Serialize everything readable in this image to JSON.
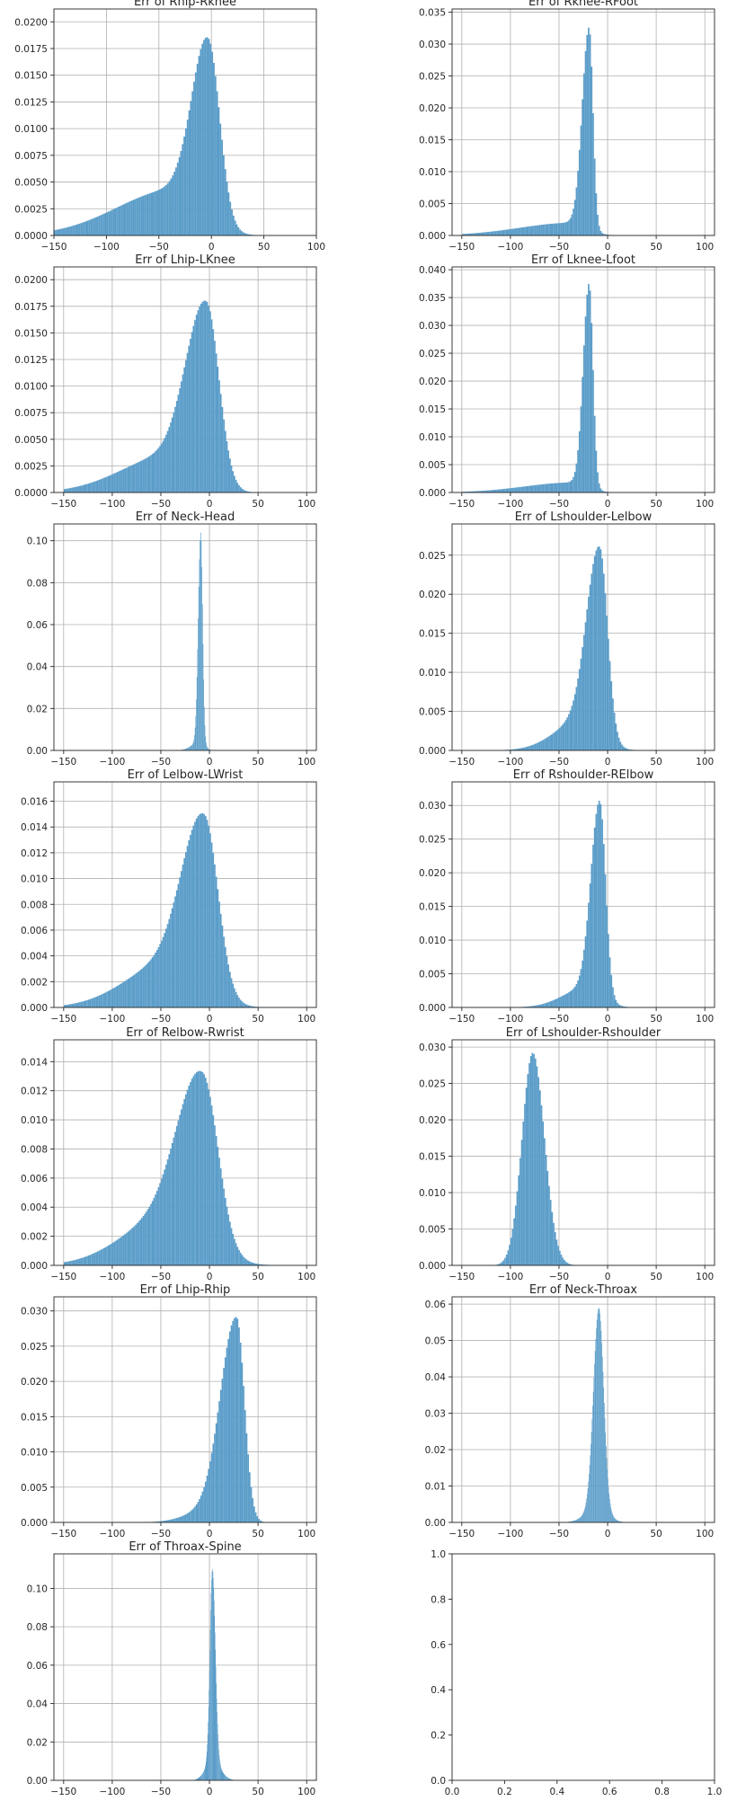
{
  "style": {
    "bar_color": "#5b9dc9",
    "grid_color": "#b0b0b0",
    "axis_color": "#262626"
  },
  "chart_data": [
    {
      "type": "histogram",
      "title": "Err of Rhip-Rknee",
      "grid": true,
      "xlim": [
        -150,
        100
      ],
      "xticks": [
        -150,
        -100,
        -50,
        0,
        50,
        100
      ],
      "ylim": [
        0,
        0.0212
      ],
      "yticks": [
        0.0,
        0.0025,
        0.005,
        0.0075,
        0.01,
        0.0125,
        0.015,
        0.0175,
        0.02
      ],
      "ytick_labels": [
        "0.0000",
        "0.0025",
        "0.0050",
        "0.0075",
        "0.0100",
        "0.0125",
        "0.0150",
        "0.0175",
        "0.0200"
      ],
      "x_range": [
        -150,
        100
      ],
      "components": [
        {
          "mu": -3,
          "sl": 15,
          "sr": 11,
          "w": 0.0166
        },
        {
          "mu": -35,
          "sl": 55,
          "sr": 25,
          "w": 0.0043
        }
      ]
    },
    {
      "type": "histogram",
      "title": "Err of Rknee-RFoot",
      "grid": true,
      "xlim": [
        -160,
        110
      ],
      "xticks": [
        -150,
        -100,
        -50,
        0,
        50,
        100
      ],
      "ylim": [
        0,
        0.0355
      ],
      "yticks": [
        0.0,
        0.005,
        0.01,
        0.015,
        0.02,
        0.025,
        0.03,
        0.035
      ],
      "ytick_labels": [
        "0.000",
        "0.005",
        "0.010",
        "0.015",
        "0.020",
        "0.025",
        "0.030",
        "0.035"
      ],
      "x_range": [
        -150,
        100
      ],
      "components": [
        {
          "mu": -19,
          "sl": 7,
          "sr": 4,
          "w": 0.0315
        },
        {
          "mu": -35,
          "sl": 55,
          "sr": 15,
          "w": 0.002
        }
      ]
    },
    {
      "type": "histogram",
      "title": "Err of Lhip-LKnee",
      "grid": true,
      "xlim": [
        -160,
        110
      ],
      "xticks": [
        -150,
        -100,
        -50,
        0,
        50,
        100
      ],
      "ylim": [
        0,
        0.0212
      ],
      "yticks": [
        0.0,
        0.0025,
        0.005,
        0.0075,
        0.01,
        0.0125,
        0.015,
        0.0175,
        0.02
      ],
      "ytick_labels": [
        "0.0000",
        "0.0025",
        "0.0050",
        "0.0075",
        "0.0100",
        "0.0125",
        "0.0150",
        "0.0175",
        "0.0200"
      ],
      "x_range": [
        -150,
        100
      ],
      "components": [
        {
          "mu": -3,
          "sl": 20,
          "sr": 13,
          "w": 0.0168
        },
        {
          "mu": -40,
          "sl": 50,
          "sr": 25,
          "w": 0.0035
        }
      ]
    },
    {
      "type": "histogram",
      "title": "Err of Lknee-Lfoot",
      "grid": true,
      "xlim": [
        -160,
        110
      ],
      "xticks": [
        -150,
        -100,
        -50,
        0,
        50,
        100
      ],
      "ylim": [
        0,
        0.0405
      ],
      "yticks": [
        0.0,
        0.005,
        0.01,
        0.015,
        0.02,
        0.025,
        0.03,
        0.035,
        0.04
      ],
      "ytick_labels": [
        "0.000",
        "0.005",
        "0.010",
        "0.015",
        "0.020",
        "0.025",
        "0.030",
        "0.035",
        "0.040"
      ],
      "x_range": [
        -150,
        100
      ],
      "components": [
        {
          "mu": -19,
          "sl": 6,
          "sr": 4,
          "w": 0.0365
        },
        {
          "mu": -35,
          "sl": 50,
          "sr": 15,
          "w": 0.0018
        }
      ]
    },
    {
      "type": "histogram",
      "title": "Err of Neck-Head",
      "grid": true,
      "xlim": [
        -160,
        110
      ],
      "xticks": [
        -150,
        -100,
        -50,
        0,
        50,
        100
      ],
      "ylim": [
        0,
        0.108
      ],
      "yticks": [
        0.0,
        0.02,
        0.04,
        0.06,
        0.08,
        0.1
      ],
      "ytick_labels": [
        "0.00",
        "0.02",
        "0.04",
        "0.06",
        "0.08",
        "0.10"
      ],
      "x_range": [
        -50,
        50
      ],
      "components": [
        {
          "mu": -9,
          "sl": 2.5,
          "sr": 2,
          "w": 0.1
        },
        {
          "mu": -10,
          "sl": 8,
          "sr": 5,
          "w": 0.004
        }
      ]
    },
    {
      "type": "histogram",
      "title": "Err of Lshoulder-Lelbow",
      "grid": true,
      "xlim": [
        -160,
        110
      ],
      "xticks": [
        -150,
        -100,
        -50,
        0,
        50,
        100
      ],
      "ylim": [
        0,
        0.029
      ],
      "yticks": [
        0.0,
        0.005,
        0.01,
        0.015,
        0.02,
        0.025
      ],
      "ytick_labels": [
        "0.000",
        "0.005",
        "0.010",
        "0.015",
        "0.020",
        "0.025"
      ],
      "x_range": [
        -150,
        100
      ],
      "components": [
        {
          "mu": -8,
          "sl": 13,
          "sr": 8,
          "w": 0.0235
        },
        {
          "mu": -25,
          "sl": 28,
          "sr": 18,
          "w": 0.004
        }
      ]
    },
    {
      "type": "histogram",
      "title": "Err of Lelbow-LWrist",
      "grid": true,
      "xlim": [
        -160,
        110
      ],
      "xticks": [
        -150,
        -100,
        -50,
        0,
        50,
        100
      ],
      "ylim": [
        0,
        0.0175
      ],
      "yticks": [
        0.0,
        0.002,
        0.004,
        0.006,
        0.008,
        0.01,
        0.012,
        0.014,
        0.016
      ],
      "ytick_labels": [
        "0.000",
        "0.002",
        "0.004",
        "0.006",
        "0.008",
        "0.010",
        "0.012",
        "0.014",
        "0.016"
      ],
      "x_range": [
        -150,
        100
      ],
      "components": [
        {
          "mu": -5,
          "sl": 22,
          "sr": 14,
          "w": 0.0132
        },
        {
          "mu": -40,
          "sl": 45,
          "sr": 30,
          "w": 0.0035
        }
      ]
    },
    {
      "type": "histogram",
      "title": "Err of Rshoulder-RElbow",
      "grid": true,
      "xlim": [
        -160,
        110
      ],
      "xticks": [
        -150,
        -100,
        -50,
        0,
        50,
        100
      ],
      "ylim": [
        0,
        0.0335
      ],
      "yticks": [
        0.0,
        0.005,
        0.01,
        0.015,
        0.02,
        0.025,
        0.03
      ],
      "ytick_labels": [
        "0.000",
        "0.005",
        "0.010",
        "0.015",
        "0.020",
        "0.025",
        "0.030"
      ],
      "x_range": [
        -150,
        100
      ],
      "components": [
        {
          "mu": -8,
          "sl": 9,
          "sr": 6,
          "w": 0.0285
        },
        {
          "mu": -20,
          "sl": 25,
          "sr": 15,
          "w": 0.003
        }
      ]
    },
    {
      "type": "histogram",
      "title": "Err of Relbow-Rwrist",
      "grid": true,
      "xlim": [
        -160,
        110
      ],
      "xticks": [
        -150,
        -100,
        -50,
        0,
        50,
        100
      ],
      "ylim": [
        0,
        0.0155
      ],
      "yticks": [
        0.0,
        0.002,
        0.004,
        0.006,
        0.008,
        0.01,
        0.012,
        0.014
      ],
      "ytick_labels": [
        "0.000",
        "0.002",
        "0.004",
        "0.006",
        "0.008",
        "0.010",
        "0.012",
        "0.014"
      ],
      "x_range": [
        -150,
        100
      ],
      "components": [
        {
          "mu": -7,
          "sl": 25,
          "sr": 16,
          "w": 0.0115
        },
        {
          "mu": -45,
          "sl": 45,
          "sr": 35,
          "w": 0.0032
        }
      ]
    },
    {
      "type": "histogram",
      "title": "Err of Lshoulder-Rshoulder",
      "grid": true,
      "xlim": [
        -160,
        110
      ],
      "xticks": [
        -150,
        -100,
        -50,
        0,
        50,
        100
      ],
      "ylim": [
        0,
        0.031
      ],
      "yticks": [
        0.0,
        0.005,
        0.01,
        0.015,
        0.02,
        0.025,
        0.03
      ],
      "ytick_labels": [
        "0.000",
        "0.005",
        "0.010",
        "0.015",
        "0.020",
        "0.025",
        "0.030"
      ],
      "x_range": [
        -150,
        100
      ],
      "components": [
        {
          "mu": -77,
          "sl": 11,
          "sr": 12,
          "w": 0.0292
        }
      ]
    },
    {
      "type": "histogram",
      "title": "Err of Lhip-Rhip",
      "grid": true,
      "xlim": [
        -160,
        110
      ],
      "xticks": [
        -150,
        -100,
        -50,
        0,
        50,
        100
      ],
      "ylim": [
        0,
        0.032
      ],
      "yticks": [
        0.0,
        0.005,
        0.01,
        0.015,
        0.02,
        0.025,
        0.03
      ],
      "ytick_labels": [
        "0.000",
        "0.005",
        "0.010",
        "0.015",
        "0.020",
        "0.025",
        "0.030"
      ],
      "x_range": [
        -150,
        100
      ],
      "components": [
        {
          "mu": 28,
          "sl": 16,
          "sr": 8,
          "w": 0.0285
        },
        {
          "mu": 5,
          "sl": 25,
          "sr": 15,
          "w": 0.002
        }
      ]
    },
    {
      "type": "histogram",
      "title": "Err of Neck-Throax",
      "grid": true,
      "xlim": [
        -160,
        110
      ],
      "xticks": [
        -150,
        -100,
        -50,
        0,
        50,
        100
      ],
      "ylim": [
        0,
        0.062
      ],
      "yticks": [
        0.0,
        0.01,
        0.02,
        0.03,
        0.04,
        0.05,
        0.06
      ],
      "ytick_labels": [
        "0.00",
        "0.01",
        "0.02",
        "0.03",
        "0.04",
        "0.05",
        "0.06"
      ],
      "x_range": [
        -60,
        40
      ],
      "components": [
        {
          "mu": -9,
          "sl": 5.5,
          "sr": 5,
          "w": 0.055
        },
        {
          "mu": -10,
          "sl": 12,
          "sr": 10,
          "w": 0.004
        }
      ]
    },
    {
      "type": "histogram",
      "title": "Err of Throax-Spine",
      "grid": true,
      "xlim": [
        -160,
        110
      ],
      "xticks": [
        -150,
        -100,
        -50,
        0,
        50,
        100
      ],
      "ylim": [
        0,
        0.118
      ],
      "yticks": [
        0.0,
        0.02,
        0.04,
        0.06,
        0.08,
        0.1
      ],
      "ytick_labels": [
        "0.00",
        "0.02",
        "0.04",
        "0.06",
        "0.08",
        "0.10"
      ],
      "x_range": [
        -30,
        40
      ],
      "components": [
        {
          "mu": 3,
          "sl": 2.5,
          "sr": 3,
          "w": 0.1
        },
        {
          "mu": 3,
          "sl": 7,
          "sr": 8,
          "w": 0.01
        }
      ]
    },
    {
      "type": "empty",
      "title": "",
      "grid": false,
      "xlim": [
        0,
        1
      ],
      "xticks": [
        0.0,
        0.2,
        0.4,
        0.6,
        0.8,
        1.0
      ],
      "xtick_labels": [
        "0.0",
        "0.2",
        "0.4",
        "0.6",
        "0.8",
        "1.0"
      ],
      "ylim": [
        0,
        1
      ],
      "yticks": [
        0.0,
        0.2,
        0.4,
        0.6,
        0.8,
        1.0
      ],
      "ytick_labels": [
        "0.0",
        "0.2",
        "0.4",
        "0.6",
        "0.8",
        "1.0"
      ]
    }
  ]
}
